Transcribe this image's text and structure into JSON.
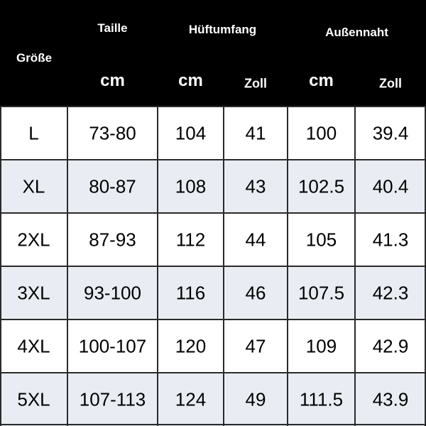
{
  "header": {
    "size_label": "Größe",
    "groups": [
      {
        "title": "Taille",
        "units": [
          "cm"
        ]
      },
      {
        "title": "Hüftumfang",
        "units": [
          "cm",
          "Zoll"
        ]
      },
      {
        "title": "Außennaht",
        "units": [
          "cm",
          "Zoll"
        ]
      }
    ]
  },
  "table": {
    "rows": [
      [
        "L",
        "73-80",
        "104",
        "41",
        "100",
        "39.4"
      ],
      [
        "XL",
        "80-87",
        "108",
        "43",
        "102.5",
        "40.4"
      ],
      [
        "2XL",
        "87-93",
        "112",
        "44",
        "105",
        "41.3"
      ],
      [
        "3XL",
        "93-100",
        "116",
        "46",
        "107.5",
        "42.3"
      ],
      [
        "4XL",
        "100-107",
        "120",
        "47",
        "109",
        "42.9"
      ],
      [
        "5XL",
        "107-113",
        "124",
        "49",
        "111.5",
        "43.9"
      ]
    ]
  }
}
